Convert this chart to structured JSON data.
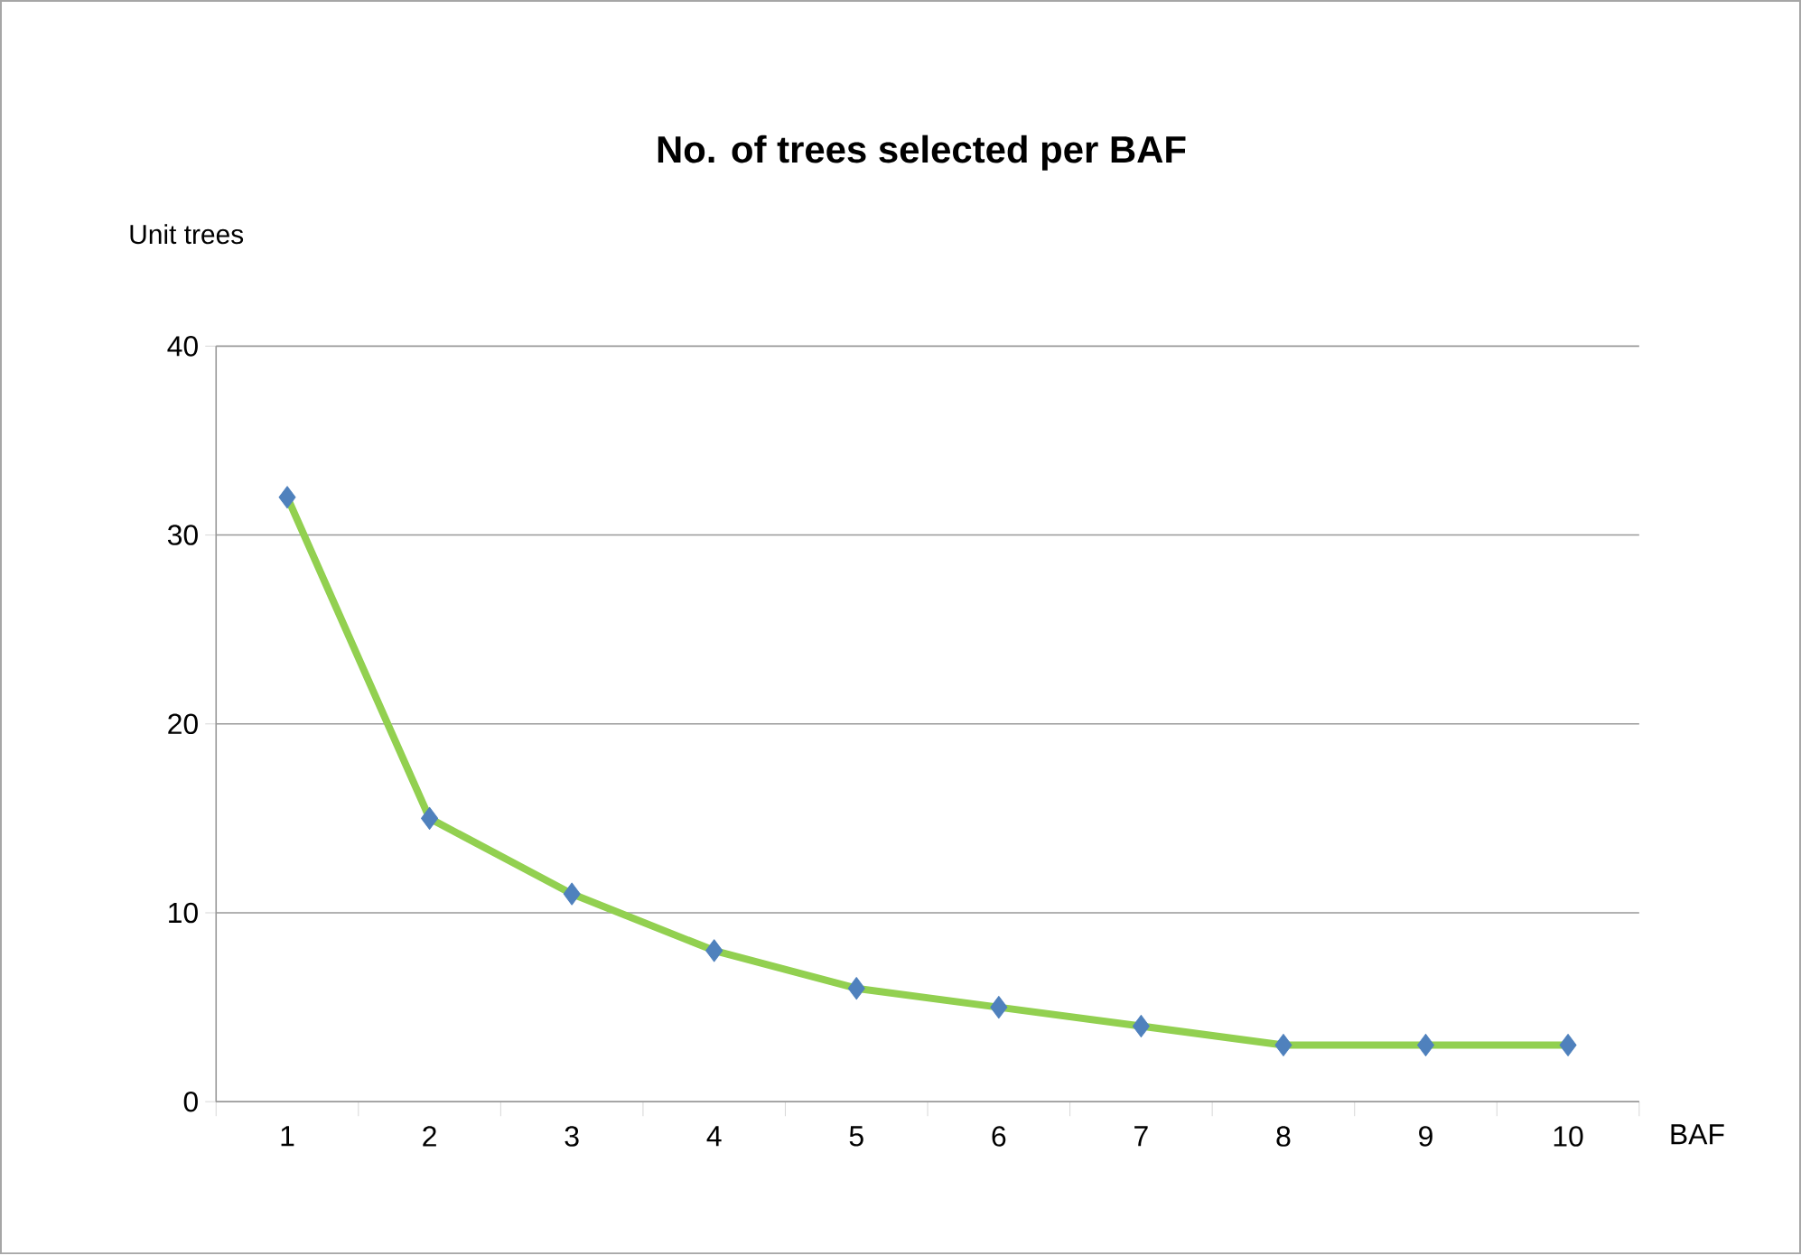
{
  "chart_data": {
    "type": "line",
    "title": "No. of trees selected per BAF",
    "xlabel": "BAF",
    "ylabel": "Unit trees",
    "categories": [
      "1",
      "2",
      "3",
      "4",
      "5",
      "6",
      "7",
      "8",
      "9",
      "10"
    ],
    "series": [
      {
        "color": "#92d050",
        "values": [
          32,
          15,
          11,
          8,
          6,
          5,
          4,
          3,
          3,
          3
        ]
      }
    ],
    "ylim": [
      0,
      40
    ],
    "yticks": [
      0,
      10,
      20,
      30,
      40
    ],
    "grid": "y",
    "marker": "diamond",
    "line_style": "solid"
  }
}
